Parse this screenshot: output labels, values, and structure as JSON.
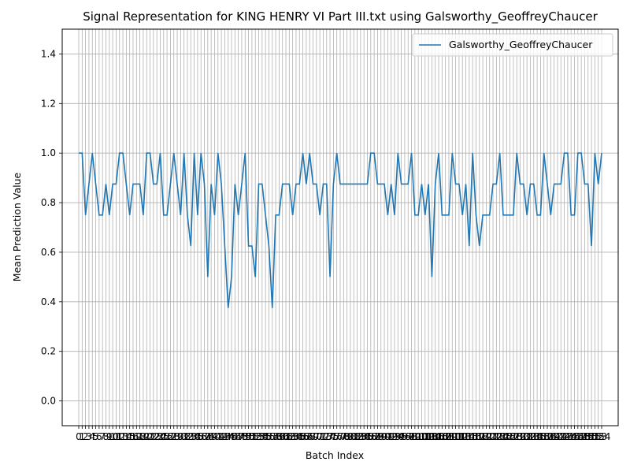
{
  "chart_data": {
    "type": "line",
    "title": "Signal Representation for KING HENRY VI Part III.txt using Galsworthy_GeoffreyChaucer",
    "xlabel": "Batch Index",
    "ylabel": "Mean Prediction Value",
    "ylim": [
      -0.1,
      1.5
    ],
    "yticks": [
      0.0,
      0.2,
      0.4,
      0.6,
      0.8,
      1.0,
      1.2,
      1.4
    ],
    "grid": true,
    "legend": "top-right",
    "color": "#1f77b4",
    "series": [
      {
        "name": "Galsworthy_GeoffreyChaucer",
        "values": [
          1.0,
          1.0,
          0.75,
          0.875,
          1.0,
          0.875,
          0.75,
          0.75,
          0.875,
          0.75,
          0.875,
          0.875,
          1.0,
          1.0,
          0.875,
          0.75,
          0.875,
          0.875,
          0.875,
          0.75,
          1.0,
          1.0,
          0.875,
          0.875,
          1.0,
          0.75,
          0.75,
          0.875,
          1.0,
          0.875,
          0.75,
          1.0,
          0.75,
          0.625,
          1.0,
          0.75,
          1.0,
          0.875,
          0.5,
          0.875,
          0.75,
          1.0,
          0.875,
          0.625,
          0.375,
          0.5,
          0.875,
          0.75,
          0.875,
          1.0,
          0.625,
          0.625,
          0.5,
          0.875,
          0.875,
          0.75,
          0.625,
          0.375,
          0.75,
          0.75,
          0.875,
          0.875,
          0.875,
          0.75,
          0.875,
          0.875,
          1.0,
          0.875,
          1.0,
          0.875,
          0.875,
          0.75,
          0.875,
          0.875,
          0.5,
          0.875,
          1.0,
          0.875,
          0.875,
          0.875,
          0.875,
          0.875,
          0.875,
          0.875,
          0.875,
          0.875,
          1.0,
          1.0,
          0.875,
          0.875,
          0.875,
          0.75,
          0.875,
          0.75,
          1.0,
          0.875,
          0.875,
          0.875,
          1.0,
          0.75,
          0.75,
          0.875,
          0.75,
          0.875,
          0.5,
          0.875,
          1.0,
          0.75,
          0.75,
          0.75,
          1.0,
          0.875,
          0.875,
          0.75,
          0.875,
          0.625,
          1.0,
          0.75,
          0.625,
          0.75,
          0.75,
          0.75,
          0.875,
          0.875,
          1.0,
          0.75,
          0.75,
          0.75,
          0.75,
          1.0,
          0.875,
          0.875,
          0.75,
          0.875,
          0.875,
          0.75,
          0.75,
          1.0,
          0.875,
          0.75,
          0.875,
          0.875,
          0.875,
          1.0,
          1.0,
          0.75,
          0.75,
          1.0,
          1.0,
          0.875,
          0.875,
          0.625,
          1.0,
          0.875,
          1.0
        ]
      }
    ]
  }
}
